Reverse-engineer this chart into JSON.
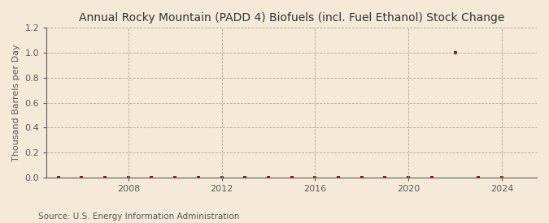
{
  "title": "Annual Rocky Mountain (PADD 4) Biofuels (incl. Fuel Ethanol) Stock Change",
  "ylabel": "Thousand Barrels per Day",
  "source": "Source: U.S. Energy Information Administration",
  "background_color": "#f5ead8",
  "plot_bg_color": "#f5ead8",
  "xlim": [
    2004.5,
    2025.5
  ],
  "ylim": [
    0.0,
    1.2
  ],
  "yticks": [
    0.0,
    0.2,
    0.4,
    0.6,
    0.8,
    1.0,
    1.2
  ],
  "xticks": [
    2008,
    2012,
    2016,
    2020,
    2024
  ],
  "marker_color": "#8b1a1a",
  "marker_size": 3.5,
  "x_data": [
    2005,
    2006,
    2007,
    2008,
    2009,
    2010,
    2011,
    2012,
    2013,
    2014,
    2015,
    2016,
    2017,
    2018,
    2019,
    2020,
    2021,
    2022,
    2023,
    2024
  ],
  "y_data": [
    0.0,
    0.0,
    0.0,
    0.0,
    0.0,
    0.0,
    0.0,
    0.0,
    0.0,
    0.0,
    0.0,
    0.0,
    0.0,
    0.0,
    0.0,
    0.0,
    0.0,
    1.0,
    0.0,
    0.0
  ],
  "title_fontsize": 10,
  "axis_fontsize": 8,
  "tick_fontsize": 8,
  "source_fontsize": 7.5,
  "grid_color": "#b0a898",
  "spine_color": "#5a5a5a"
}
